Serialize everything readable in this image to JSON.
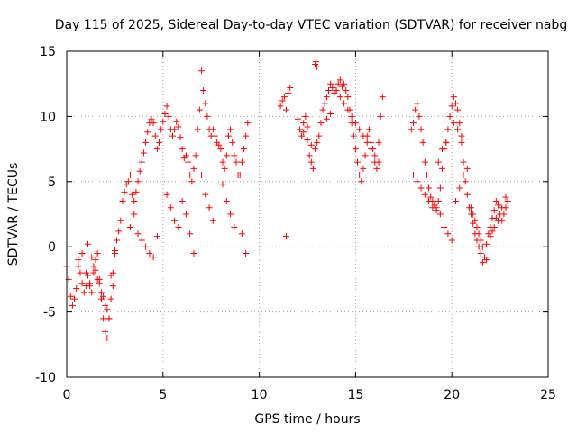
{
  "chart_data": {
    "type": "scatter",
    "title": "Day 115 of 2025, Sidereal Day-to-day VTEC variation (SDTVAR) for receiver nabg",
    "xlabel": "GPS time / hours",
    "ylabel": "SDTVAR / TECUs",
    "xlim": [
      0,
      25
    ],
    "ylim": [
      -10,
      15
    ],
    "xticks": [
      0,
      5,
      10,
      15,
      20,
      25
    ],
    "yticks": [
      -10,
      -5,
      0,
      5,
      10,
      15
    ],
    "grid": true,
    "marker": "+",
    "color": "#ff0000",
    "series": [
      {
        "name": "SDTVAR",
        "x": [
          0.0,
          0.1,
          0.2,
          0.3,
          0.4,
          0.5,
          0.6,
          0.7,
          0.8,
          0.9,
          1.0,
          1.1,
          1.2,
          1.3,
          1.4,
          1.5,
          1.6,
          1.7,
          1.8,
          1.9,
          2.0,
          2.1,
          2.2,
          2.3,
          2.4,
          2.5,
          2.6,
          2.7,
          2.8,
          2.9,
          3.0,
          3.1,
          3.2,
          3.3,
          3.4,
          3.5,
          3.6,
          3.7,
          3.8,
          3.9,
          4.0,
          4.1,
          4.2,
          4.3,
          4.4,
          4.5,
          4.6,
          4.7,
          4.8,
          4.9,
          5.0,
          5.1,
          5.2,
          5.3,
          5.4,
          5.5,
          5.6,
          5.7,
          5.8,
          5.9,
          6.0,
          6.1,
          6.2,
          6.3,
          6.4,
          6.5,
          6.6,
          6.7,
          6.8,
          6.9,
          7.0,
          7.1,
          7.2,
          7.3,
          7.4,
          7.5,
          7.6,
          7.7,
          7.8,
          7.9,
          8.0,
          8.1,
          8.2,
          8.3,
          8.4,
          8.5,
          8.6,
          8.7,
          8.8,
          8.9,
          9.0,
          9.1,
          9.2,
          9.3,
          9.4,
          1.0,
          1.2,
          1.4,
          1.6,
          1.8,
          2.0,
          2.2,
          2.4,
          0.6,
          0.8,
          1.1,
          1.3,
          1.5,
          1.7,
          1.9,
          2.1,
          2.3,
          2.5,
          3.3,
          3.5,
          3.7,
          3.9,
          4.1,
          4.3,
          4.5,
          4.7,
          5.2,
          5.4,
          5.6,
          5.8,
          6.0,
          6.2,
          6.4,
          6.6,
          7.0,
          7.2,
          7.4,
          7.6,
          8.1,
          8.3,
          8.5,
          8.7,
          9.1,
          9.3,
          11.1,
          11.2,
          11.3,
          11.4,
          11.5,
          11.6,
          12.0,
          12.1,
          12.2,
          12.3,
          12.4,
          12.5,
          12.6,
          12.7,
          12.8,
          12.9,
          13.0,
          13.1,
          13.2,
          13.3,
          13.4,
          13.5,
          13.6,
          13.7,
          13.8,
          13.9,
          14.0,
          14.1,
          14.2,
          14.3,
          14.4,
          14.5,
          14.6,
          14.7,
          14.8,
          14.9,
          15.0,
          15.1,
          15.2,
          15.3,
          15.4,
          15.5,
          15.6,
          15.7,
          15.8,
          15.9,
          16.0,
          16.1,
          16.2,
          16.3,
          16.4,
          11.4,
          12.9,
          12.95,
          13.0,
          14.0,
          14.2,
          14.4,
          14.6,
          14.8,
          15.0,
          15.2,
          15.4,
          15.6,
          15.8,
          16.0,
          16.2,
          12.3,
          12.5,
          12.7,
          13.5,
          13.7,
          17.9,
          18.0,
          18.1,
          18.2,
          18.3,
          18.4,
          18.5,
          18.6,
          18.7,
          18.8,
          18.9,
          19.0,
          19.1,
          19.2,
          19.3,
          19.4,
          19.5,
          19.6,
          19.7,
          19.8,
          19.9,
          20.0,
          20.1,
          20.2,
          20.3,
          20.4,
          20.5,
          20.6,
          20.7,
          20.8,
          20.9,
          21.0,
          21.1,
          21.2,
          21.3,
          21.4,
          21.5,
          21.6,
          21.7,
          21.8,
          21.9,
          22.0,
          22.1,
          22.2,
          22.3,
          22.4,
          22.5,
          22.6,
          22.7,
          22.8,
          22.9,
          18.0,
          18.2,
          18.4,
          18.6,
          18.8,
          19.0,
          19.2,
          19.4,
          19.6,
          19.8,
          20.0,
          20.2,
          20.4,
          20.6,
          20.8,
          21.0,
          21.2,
          21.4,
          21.6,
          21.8,
          22.0,
          22.2,
          22.4,
          22.6,
          22.8,
          19.3,
          19.5,
          19.7,
          20.1,
          20.3,
          20.5,
          21.1,
          21.3,
          21.5,
          22.1,
          22.3
        ],
        "y": [
          -1.5,
          -2.5,
          -3.8,
          -4.5,
          -4.0,
          -3.2,
          -1.5,
          -2.0,
          -2.8,
          -3.5,
          -3.0,
          -2.2,
          -2.8,
          -3.5,
          -2.0,
          -1.0,
          -0.5,
          -2.5,
          -4.0,
          -5.5,
          -6.5,
          -7.0,
          -5.5,
          -4.0,
          -2.0,
          -0.5,
          0.5,
          1.2,
          2.0,
          3.5,
          4.2,
          4.8,
          5.0,
          5.5,
          4.0,
          3.5,
          4.2,
          5.0,
          5.8,
          6.5,
          7.2,
          8.0,
          8.8,
          9.5,
          9.8,
          9.5,
          8.5,
          7.5,
          8.0,
          9.0,
          9.6,
          10.2,
          10.8,
          10.0,
          9.0,
          8.5,
          9.0,
          9.6,
          9.2,
          8.4,
          7.5,
          6.8,
          7.0,
          6.5,
          5.5,
          5.0,
          6.0,
          7.0,
          9.0,
          10.5,
          13.5,
          12.0,
          11.0,
          10.0,
          9.0,
          8.5,
          9.0,
          8.5,
          8.0,
          7.8,
          7.5,
          6.5,
          6.0,
          7.0,
          8.5,
          9.0,
          8.0,
          7.0,
          6.5,
          5.5,
          5.5,
          6.5,
          7.5,
          8.5,
          9.5,
          -2.0,
          -3.0,
          -1.5,
          -2.5,
          -3.5,
          -4.5,
          -5.5,
          -3.0,
          -1.0,
          -0.5,
          0.2,
          -0.8,
          -1.8,
          -2.8,
          -3.8,
          -4.8,
          -2.2,
          -0.3,
          1.5,
          2.5,
          1.0,
          0.5,
          0.0,
          -0.5,
          -0.8,
          0.8,
          4.0,
          3.0,
          2.0,
          1.5,
          3.5,
          2.5,
          1.0,
          -0.5,
          5.5,
          4.0,
          3.0,
          2.0,
          4.8,
          3.5,
          2.5,
          1.5,
          1.0,
          -0.5,
          10.8,
          11.2,
          11.5,
          10.5,
          11.8,
          12.2,
          9.8,
          9.0,
          8.5,
          9.5,
          10.0,
          9.2,
          7.0,
          6.5,
          6.0,
          7.5,
          8.0,
          8.5,
          9.5,
          10.5,
          11.0,
          11.5,
          12.0,
          12.5,
          12.2,
          11.8,
          12.0,
          12.5,
          12.8,
          12.3,
          12.5,
          12.0,
          11.5,
          10.5,
          9.5,
          8.5,
          7.5,
          6.5,
          5.5,
          5.0,
          6.0,
          7.0,
          8.5,
          9.0,
          8.0,
          7.5,
          6.5,
          6.0,
          8.0,
          10.0,
          11.5,
          0.8,
          14.0,
          14.2,
          13.8,
          12.0,
          11.5,
          11.0,
          10.5,
          10.0,
          9.5,
          9.0,
          8.5,
          8.0,
          7.5,
          7.0,
          6.5,
          8.8,
          8.2,
          7.8,
          9.8,
          10.2,
          9.0,
          9.5,
          10.5,
          11.0,
          10.0,
          9.0,
          8.0,
          6.5,
          5.5,
          4.5,
          3.8,
          3.5,
          3.2,
          3.0,
          3.5,
          4.5,
          6.0,
          7.5,
          8.0,
          9.0,
          10.0,
          10.8,
          11.5,
          11.0,
          10.5,
          9.5,
          8.0,
          6.5,
          5.0,
          4.0,
          3.0,
          2.5,
          1.8,
          1.0,
          0.5,
          0.0,
          -0.5,
          -1.2,
          -0.8,
          0.2,
          1.0,
          1.5,
          2.2,
          2.8,
          3.5,
          3.2,
          2.5,
          2.0,
          2.5,
          3.0,
          3.5,
          5.5,
          5.0,
          4.5,
          4.0,
          3.5,
          3.0,
          2.8,
          2.5,
          1.5,
          1.0,
          0.5,
          3.5,
          4.5,
          5.5,
          6.0,
          3.0,
          2.0,
          1.0,
          0.0,
          -1.0,
          0.8,
          1.5,
          2.0,
          3.0,
          3.8,
          6.5,
          7.5,
          8.0,
          9.5,
          9.0,
          8.5,
          2.5,
          1.5,
          0.5,
          1.2,
          2.2
        ]
      }
    ]
  }
}
